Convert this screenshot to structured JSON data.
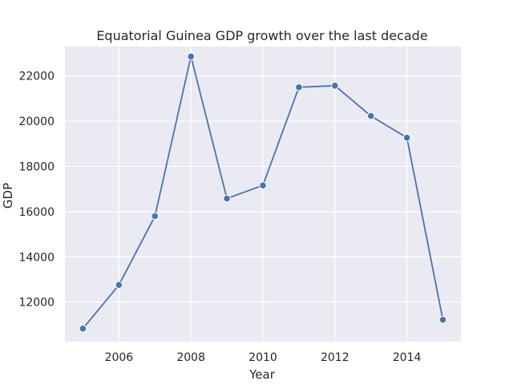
{
  "chart_data": {
    "type": "line",
    "title": "Equatorial Guinea GDP growth over the last decade",
    "xlabel": "Year",
    "ylabel": "GDP",
    "xlim": [
      2004.5,
      2015.5
    ],
    "ylim": [
      10250,
      23300
    ],
    "xticks": [
      2006,
      2008,
      2010,
      2012,
      2014
    ],
    "yticks": [
      12000,
      14000,
      16000,
      18000,
      20000,
      22000
    ],
    "grid": true,
    "x": [
      2005,
      2006,
      2007,
      2008,
      2009,
      2010,
      2011,
      2012,
      2013,
      2014,
      2015
    ],
    "series": [
      {
        "values": [
          10830,
          12760,
          15800,
          22860,
          16580,
          17160,
          21500,
          21570,
          20230,
          19270,
          11220
        ]
      }
    ],
    "colors": {
      "background": "#eaeaf2",
      "grid": "#ffffff",
      "line": "#4c72b0",
      "marker_edge": "#ffffff"
    }
  }
}
